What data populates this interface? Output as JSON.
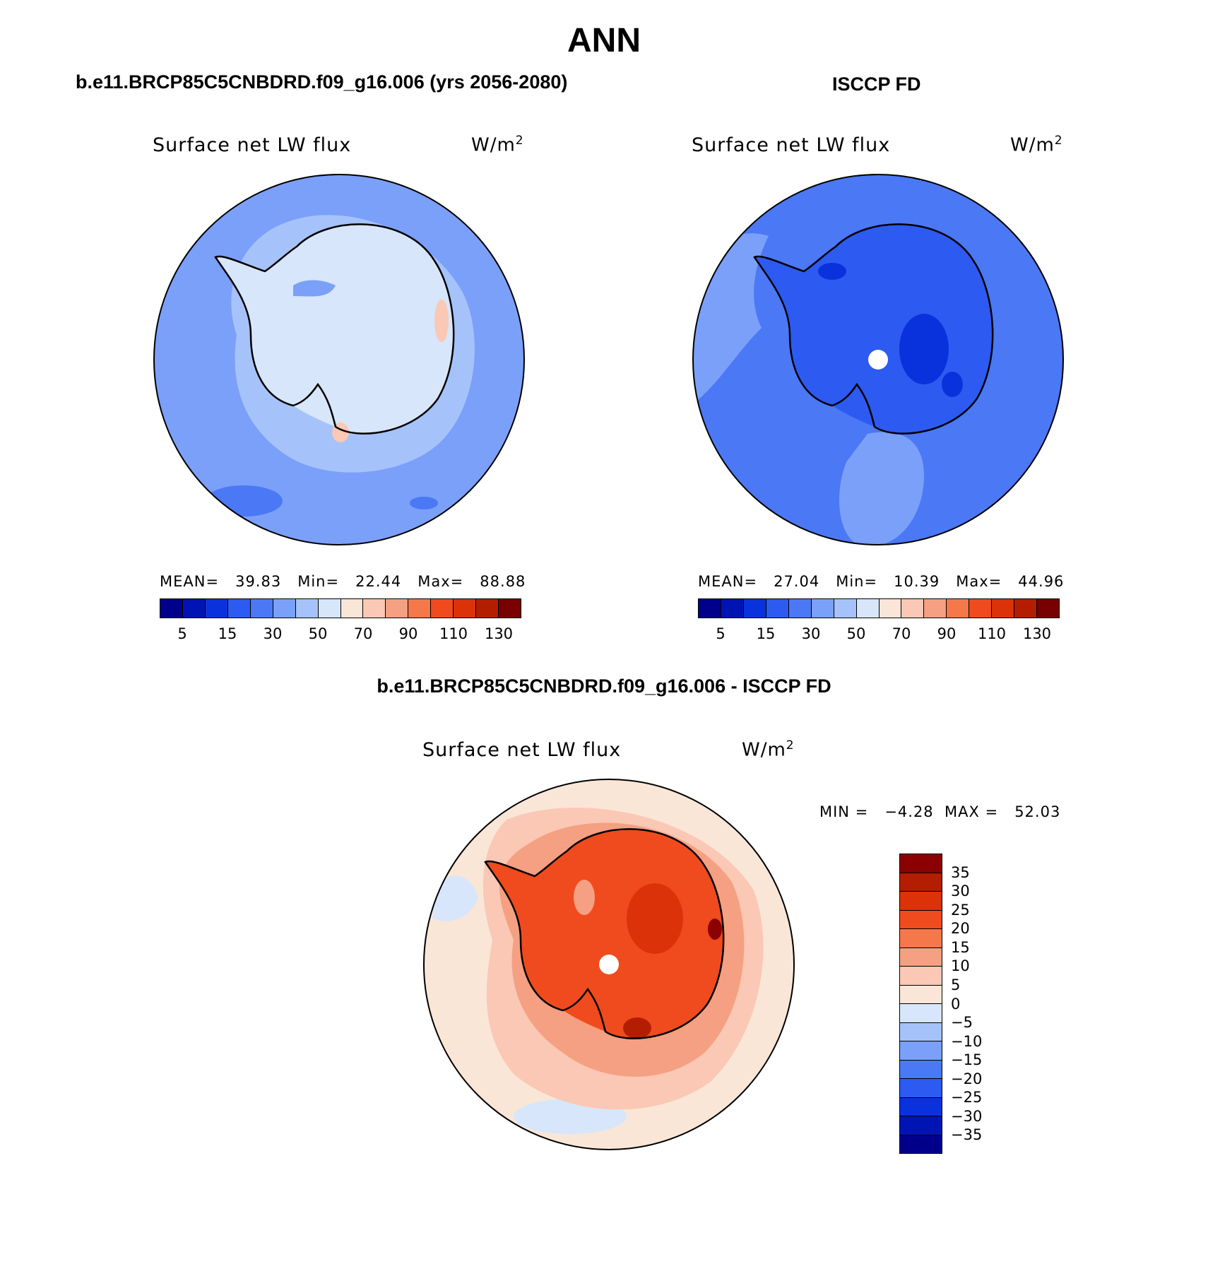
{
  "header": {
    "title": "ANN"
  },
  "panels": {
    "model": {
      "case_title": "b.e11.BRCP85C5CNBDRD.f09_g16.006 (yrs 2056-2080)",
      "plot_title": "Surface net LW flux",
      "units_base": "W/m",
      "units_exp": "2",
      "stats": "MEAN=   39.83   Min=   22.44   Max=   88.88",
      "mean": 39.83,
      "min": 22.44,
      "max": 88.88,
      "colorbar_ticks": [
        "5",
        "15",
        "30",
        "50",
        "70",
        "90",
        "110",
        "130"
      ]
    },
    "obs": {
      "case_title": "ISCCP FD",
      "plot_title": "Surface net LW flux",
      "units_base": "W/m",
      "units_exp": "2",
      "stats": "MEAN=   27.04   Min=   10.39   Max=   44.96",
      "mean": 27.04,
      "min": 10.39,
      "max": 44.96,
      "colorbar_ticks": [
        "5",
        "15",
        "30",
        "50",
        "70",
        "90",
        "110",
        "130"
      ]
    },
    "diff": {
      "case_title": "b.e11.BRCP85C5CNBDRD.f09_g16.006 - ISCCP FD",
      "plot_title": "Surface net LW flux",
      "units_base": "W/m",
      "units_exp": "2",
      "stats": "MIN =   −4.28  MAX =   52.03",
      "min": -4.28,
      "max": 52.03,
      "colorbar_ticks": [
        "35",
        "30",
        "25",
        "20",
        "15",
        "10",
        "5",
        "0",
        "−5",
        "−10",
        "−15",
        "−20",
        "−25",
        "−30",
        "−35"
      ]
    }
  },
  "colors": {
    "abs_scale": [
      "#00008b",
      "#0014b4",
      "#0a32dc",
      "#2d5af0",
      "#4b78f5",
      "#7ba0fa",
      "#a5c3fa",
      "#d7e6fa",
      "#fae6d7",
      "#fac8b4",
      "#f5a082",
      "#f5784b",
      "#f04b1e",
      "#dc320a",
      "#b41e00",
      "#780000"
    ],
    "diff_scale": [
      "#8b0000",
      "#b41e00",
      "#dc320a",
      "#f04b1e",
      "#f5784b",
      "#f5a082",
      "#fac8b4",
      "#fae6d7",
      "#d7e6fa",
      "#a5c3fa",
      "#7ba0fa",
      "#4b78f5",
      "#2d5af0",
      "#0a32dc",
      "#0014b4",
      "#00008b"
    ]
  }
}
